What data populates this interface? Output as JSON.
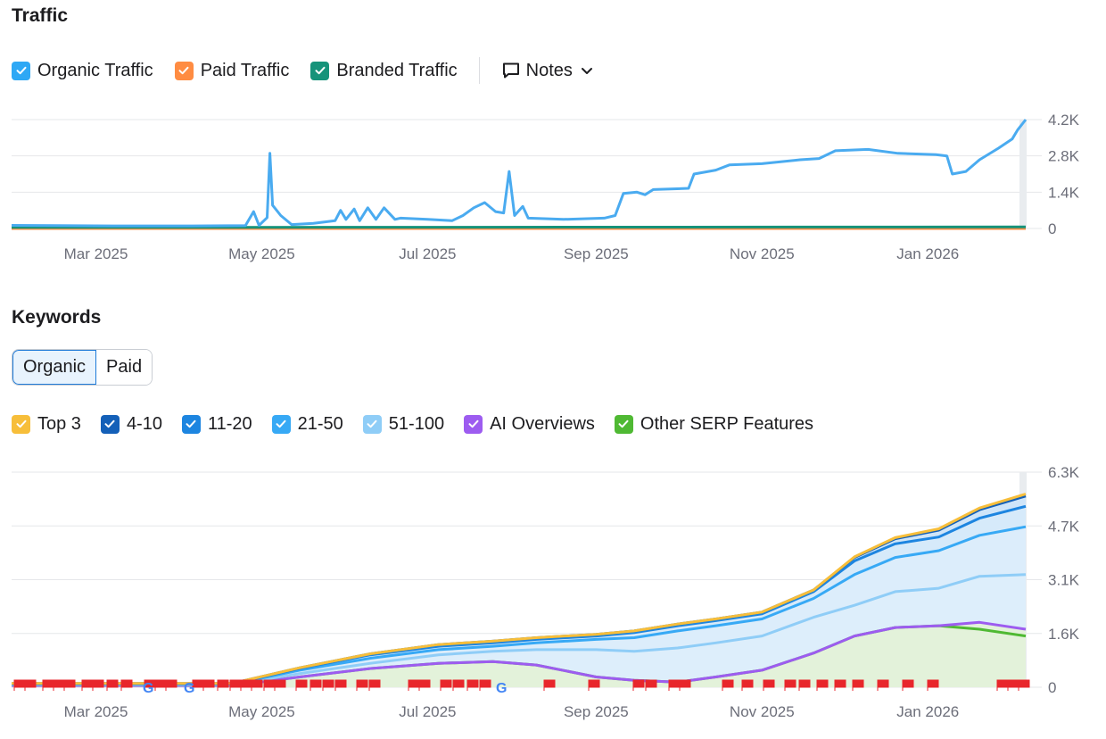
{
  "traffic": {
    "title": "Traffic",
    "legend": [
      {
        "label": "Organic Traffic",
        "color": "#2ea8f5"
      },
      {
        "label": "Paid Traffic",
        "color": "#ff8c42"
      },
      {
        "label": "Branded Traffic",
        "color": "#16937a"
      }
    ],
    "notes_label": "Notes"
  },
  "keywords": {
    "title": "Keywords",
    "tabs": [
      {
        "label": "Organic",
        "active": true
      },
      {
        "label": "Paid",
        "active": false
      }
    ],
    "legend": [
      {
        "label": "Top 3",
        "color": "#f7be3a"
      },
      {
        "label": "4-10",
        "color": "#1460b8"
      },
      {
        "label": "11-20",
        "color": "#1d85e0"
      },
      {
        "label": "21-50",
        "color": "#37a9f5"
      },
      {
        "label": "51-100",
        "color": "#8fcdf7"
      },
      {
        "label": "AI Overviews",
        "color": "#9d5cf0"
      },
      {
        "label": "Other SERP Features",
        "color": "#4fb933"
      }
    ]
  },
  "chart_data": [
    {
      "type": "line",
      "title": "Traffic",
      "x_tick_labels": [
        "Mar 2025",
        "May 2025",
        "Jul 2025",
        "Sep 2025",
        "Nov 2025",
        "Jan 2026"
      ],
      "y_tick_labels": [
        "4.2K",
        "2.8K",
        "1.4K",
        "0"
      ],
      "ylim": [
        0,
        4200
      ],
      "xlim": [
        "2025-01-29",
        "2026-02-06"
      ],
      "grid": true,
      "series": [
        {
          "name": "Organic Traffic",
          "color": "#4aabf0",
          "points": [
            [
              "2025-01-29",
              120
            ],
            [
              "2025-02-15",
              110
            ],
            [
              "2025-03-10",
              100
            ],
            [
              "2025-04-05",
              100
            ],
            [
              "2025-04-25",
              110
            ],
            [
              "2025-04-28",
              650
            ],
            [
              "2025-04-30",
              120
            ],
            [
              "2025-05-03",
              420
            ],
            [
              "2025-05-04",
              2900
            ],
            [
              "2025-05-05",
              900
            ],
            [
              "2025-05-08",
              500
            ],
            [
              "2025-05-12",
              150
            ],
            [
              "2025-05-20",
              200
            ],
            [
              "2025-05-28",
              300
            ],
            [
              "2025-05-30",
              700
            ],
            [
              "2025-06-01",
              350
            ],
            [
              "2025-06-04",
              750
            ],
            [
              "2025-06-06",
              300
            ],
            [
              "2025-06-09",
              800
            ],
            [
              "2025-06-12",
              350
            ],
            [
              "2025-06-15",
              800
            ],
            [
              "2025-06-19",
              350
            ],
            [
              "2025-06-21",
              400
            ],
            [
              "2025-07-01",
              350
            ],
            [
              "2025-07-10",
              300
            ],
            [
              "2025-07-14",
              500
            ],
            [
              "2025-07-18",
              800
            ],
            [
              "2025-07-22",
              1000
            ],
            [
              "2025-07-26",
              650
            ],
            [
              "2025-07-29",
              600
            ],
            [
              "2025-07-31",
              2200
            ],
            [
              "2025-08-02",
              500
            ],
            [
              "2025-08-05",
              850
            ],
            [
              "2025-08-07",
              400
            ],
            [
              "2025-08-20",
              350
            ],
            [
              "2025-09-04",
              400
            ],
            [
              "2025-09-08",
              500
            ],
            [
              "2025-09-11",
              1350
            ],
            [
              "2025-09-16",
              1400
            ],
            [
              "2025-09-19",
              1300
            ],
            [
              "2025-09-22",
              1500
            ],
            [
              "2025-10-05",
              1550
            ],
            [
              "2025-10-07",
              2100
            ],
            [
              "2025-10-15",
              2250
            ],
            [
              "2025-10-20",
              2450
            ],
            [
              "2025-11-01",
              2500
            ],
            [
              "2025-11-15",
              2650
            ],
            [
              "2025-11-22",
              2700
            ],
            [
              "2025-11-28",
              3000
            ],
            [
              "2025-12-10",
              3050
            ],
            [
              "2025-12-21",
              2900
            ],
            [
              "2026-01-04",
              2850
            ],
            [
              "2026-01-08",
              2800
            ],
            [
              "2026-01-10",
              2100
            ],
            [
              "2026-01-15",
              2200
            ],
            [
              "2026-01-20",
              2650
            ],
            [
              "2026-01-27",
              3100
            ],
            [
              "2026-02-01",
              3450
            ],
            [
              "2026-02-03",
              3800
            ],
            [
              "2026-02-06",
              4200
            ]
          ]
        },
        {
          "name": "Paid Traffic",
          "color": "#ff8c42",
          "points": [
            [
              "2025-01-29",
              0
            ],
            [
              "2026-02-06",
              0
            ]
          ]
        },
        {
          "name": "Branded Traffic",
          "color": "#16937a",
          "points": [
            [
              "2025-01-29",
              40
            ],
            [
              "2026-02-06",
              60
            ]
          ]
        }
      ]
    },
    {
      "type": "area",
      "title": "Keywords",
      "x_tick_labels": [
        "Mar 2025",
        "May 2025",
        "Jul 2025",
        "Sep 2025",
        "Nov 2025",
        "Jan 2026"
      ],
      "y_tick_labels": [
        "6.3K",
        "4.7K",
        "3.1K",
        "1.6K",
        "0"
      ],
      "ylim": [
        0,
        6300
      ],
      "xlim": [
        "2025-01-29",
        "2026-02-06"
      ],
      "grid": true,
      "stacked": true,
      "dates": [
        "2025-01-29",
        "2025-03-01",
        "2025-04-20",
        "2025-05-15",
        "2025-06-10",
        "2025-07-05",
        "2025-07-25",
        "2025-08-10",
        "2025-09-01",
        "2025-09-15",
        "2025-10-01",
        "2025-10-15",
        "2025-11-01",
        "2025-11-20",
        "2025-12-05",
        "2025-12-20",
        "2026-01-05",
        "2026-01-20",
        "2026-02-06"
      ],
      "series": [
        {
          "name": "Other SERP Features",
          "color": "#4fb933",
          "values": [
            50,
            50,
            50,
            300,
            550,
            700,
            750,
            650,
            300,
            200,
            150,
            300,
            500,
            1000,
            1500,
            1750,
            1800,
            1700,
            1500
          ]
        },
        {
          "name": "AI Overviews",
          "color": "#9d5cf0",
          "values": [
            0,
            0,
            0,
            0,
            0,
            0,
            0,
            0,
            0,
            0,
            0,
            0,
            0,
            0,
            0,
            0,
            0,
            200,
            200
          ]
        },
        {
          "name": "51-100",
          "color": "#8fcdf7",
          "values": [
            20,
            20,
            20,
            100,
            150,
            250,
            300,
            450,
            800,
            850,
            1000,
            1000,
            1000,
            1050,
            900,
            1050,
            1100,
            1350,
            1600
          ]
        },
        {
          "name": "21-50",
          "color": "#37a9f5",
          "values": [
            20,
            20,
            20,
            100,
            150,
            150,
            150,
            200,
            300,
            400,
            500,
            500,
            500,
            550,
            900,
            1000,
            1100,
            1200,
            1400
          ]
        },
        {
          "name": "11-20",
          "color": "#1d85e0",
          "values": [
            10,
            10,
            10,
            50,
            100,
            100,
            100,
            100,
            100,
            150,
            150,
            150,
            150,
            200,
            400,
            400,
            400,
            500,
            600
          ]
        },
        {
          "name": "4-10",
          "color": "#1460b8",
          "values": [
            10,
            10,
            10,
            20,
            30,
            50,
            50,
            50,
            50,
            50,
            50,
            50,
            50,
            50,
            100,
            150,
            200,
            250,
            300
          ]
        },
        {
          "name": "Top 3",
          "color": "#f7be3a",
          "values": [
            0,
            0,
            0,
            0,
            0,
            0,
            0,
            0,
            0,
            0,
            0,
            0,
            0,
            0,
            20,
            30,
            40,
            50,
            60
          ]
        }
      ]
    }
  ]
}
